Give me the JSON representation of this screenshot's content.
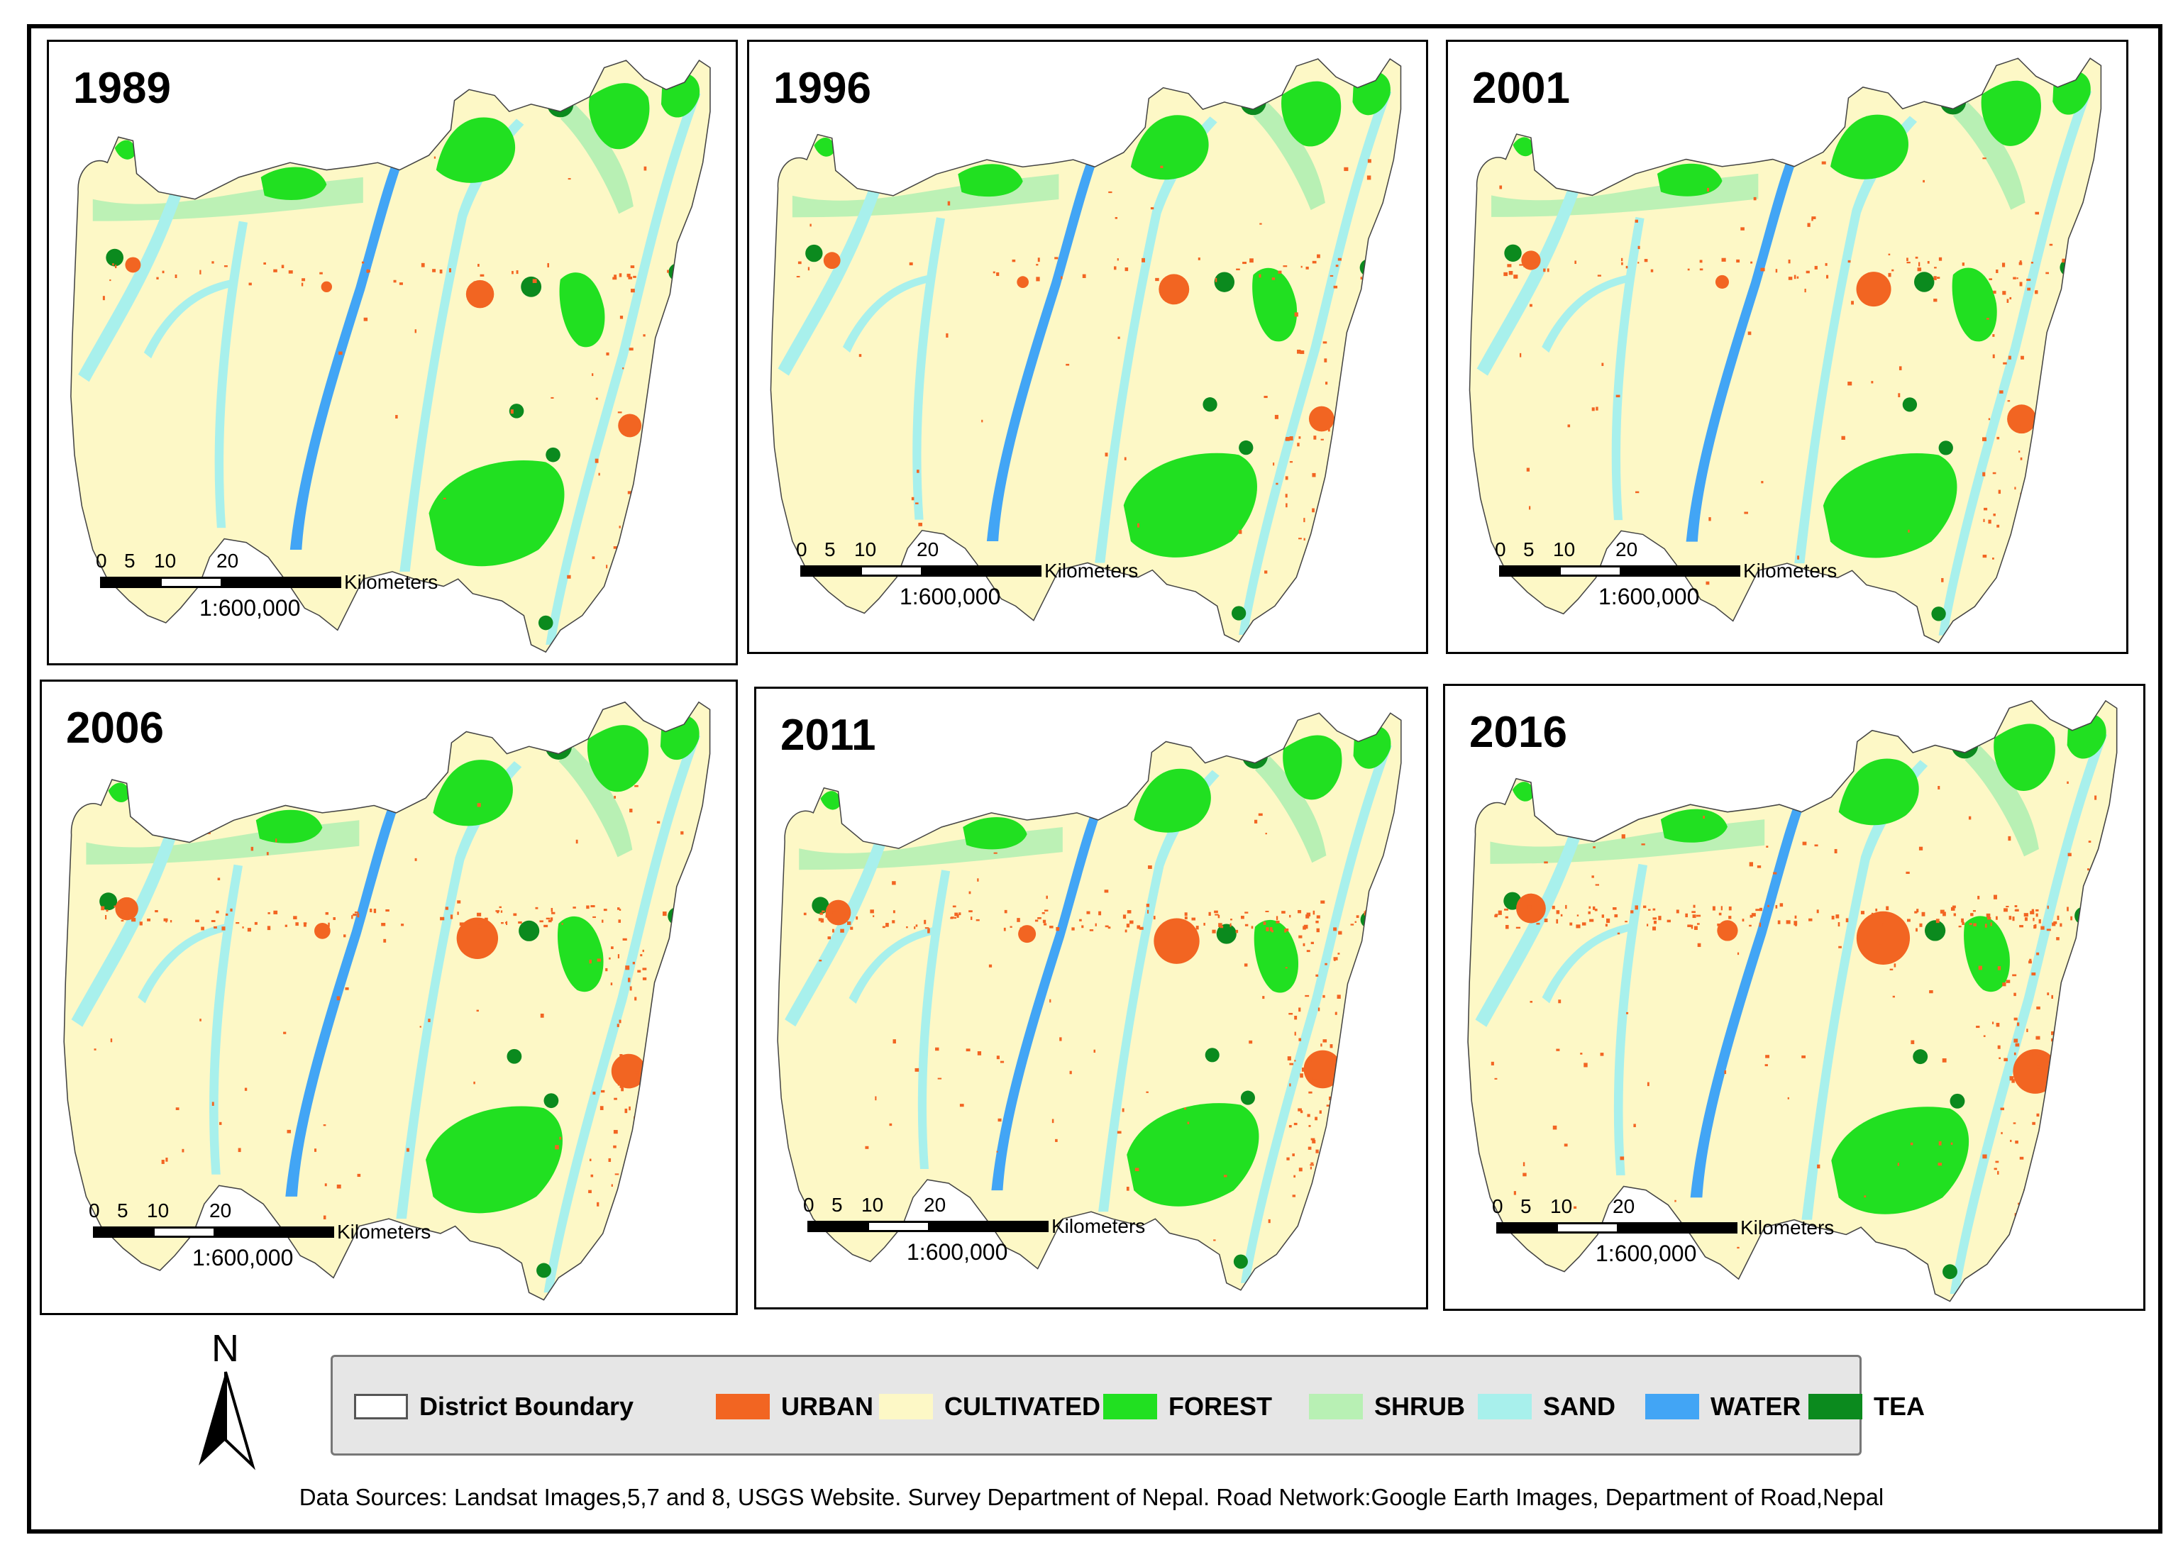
{
  "colors": {
    "urban": "#f26522",
    "cultivated": "#fdf8c6",
    "forest": "#21e021",
    "shrub": "#b8f0b4",
    "sand": "#a8f0ec",
    "water": "#42a5f5",
    "tea": "#0b8a1e",
    "boundary": "#444444"
  },
  "panels": [
    {
      "year": "1989",
      "urban_level": 0.15
    },
    {
      "year": "1996",
      "urban_level": 0.25
    },
    {
      "year": "2001",
      "urban_level": 0.4
    },
    {
      "year": "2006",
      "urban_level": 0.6
    },
    {
      "year": "2011",
      "urban_level": 0.8
    },
    {
      "year": "2016",
      "urban_level": 1.0
    }
  ],
  "scale_bar": {
    "ticks": [
      "0",
      "5",
      "10",
      "20"
    ],
    "unit": "Kilometers",
    "ratio": "1:600,000"
  },
  "north_arrow": {
    "label": "N"
  },
  "legend": {
    "items": [
      {
        "key": "boundary",
        "label": "District Boundary"
      },
      {
        "key": "urban",
        "label": "URBAN"
      },
      {
        "key": "cultivated",
        "label": "CULTIVATED"
      },
      {
        "key": "forest",
        "label": "FOREST"
      },
      {
        "key": "shrub",
        "label": "SHRUB"
      },
      {
        "key": "sand",
        "label": "SAND"
      },
      {
        "key": "water",
        "label": "WATER"
      },
      {
        "key": "tea",
        "label": "TEA"
      }
    ]
  },
  "source_text": "Data Sources: Landsat Images,5,7 and 8, USGS Website. Survey Department of Nepal. Road Network:Google Earth Images, Department of Road,Nepal"
}
